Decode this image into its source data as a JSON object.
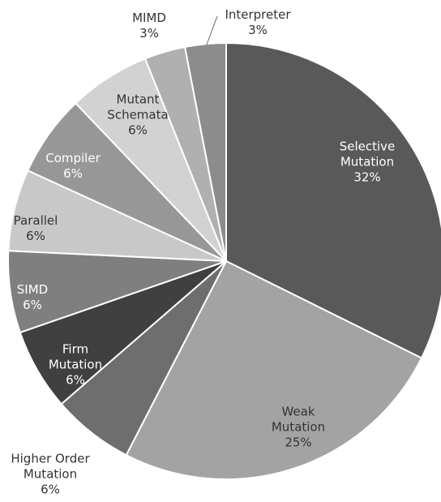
{
  "chart_data": {
    "type": "pie",
    "categories": [
      "Selective Mutation",
      "Weak Mutation",
      "Higher Order Mutation",
      "Firm Mutation",
      "SIMD",
      "Parallel",
      "Compiler",
      "Mutant Schemata",
      "MIMD",
      "Interpreter"
    ],
    "values": [
      32,
      25,
      6,
      6,
      6,
      6,
      6,
      6,
      3,
      3
    ],
    "value_labels": [
      "32%",
      "25%",
      "6%",
      "6%",
      "6%",
      "6%",
      "6%",
      "6%",
      "3%",
      "3%"
    ],
    "colors": [
      "#595959",
      "#a3a3a3",
      "#6e6e6e",
      "#404040",
      "#7f7f7f",
      "#c8c8c8",
      "#979797",
      "#d2d2d2",
      "#b0b0b0",
      "#8c8c8c"
    ]
  }
}
